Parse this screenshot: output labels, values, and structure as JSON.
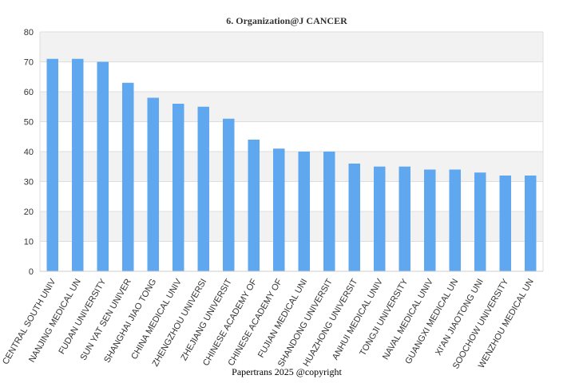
{
  "chart_data": {
    "type": "bar",
    "title": "6. Organization@J CANCER",
    "xlabel": "",
    "ylabel": "",
    "ylim": [
      0,
      80
    ],
    "yticks": [
      0,
      10,
      20,
      30,
      40,
      50,
      60,
      70,
      80
    ],
    "grid": true,
    "legend": "none",
    "bar_color": "#5fa8f0",
    "band_color": "#f2f2f2",
    "categories": [
      "CENTRAL SOUTH UNIV",
      "NANJING MEDICAL UN",
      "FUDAN UNIVERSITY",
      "SUN YAT SEN UNIVER",
      "SHANGHAI JIAO TONG",
      "CHINA MEDICAL UNIV",
      "ZHENGZHOU UNIVERSI",
      "ZHEJIANG UNIVERSIT",
      "CHINESE ACADEMY OF",
      "CHINESE ACADEMY OF",
      "FUJIAN MEDICAL UNI",
      "SHANDONG UNIVERSIT",
      "HUAZHONG UNIVERSIT",
      "ANHUI MEDICAL UNIV",
      "TONGJI UNIVERSITY",
      "NAVAL MEDICAL UNIV",
      "GUANGXI MEDICAL UN",
      "XI'AN JIAOTONG UNI",
      "SOOCHOW UNIVERSITY",
      "WENZHOU MEDICAL UN"
    ],
    "values": [
      71,
      71,
      70,
      63,
      58,
      56,
      55,
      51,
      44,
      41,
      40,
      40,
      36,
      35,
      35,
      34,
      34,
      33,
      32,
      32
    ]
  },
  "credit": "Papertrans 2025 @copyright"
}
